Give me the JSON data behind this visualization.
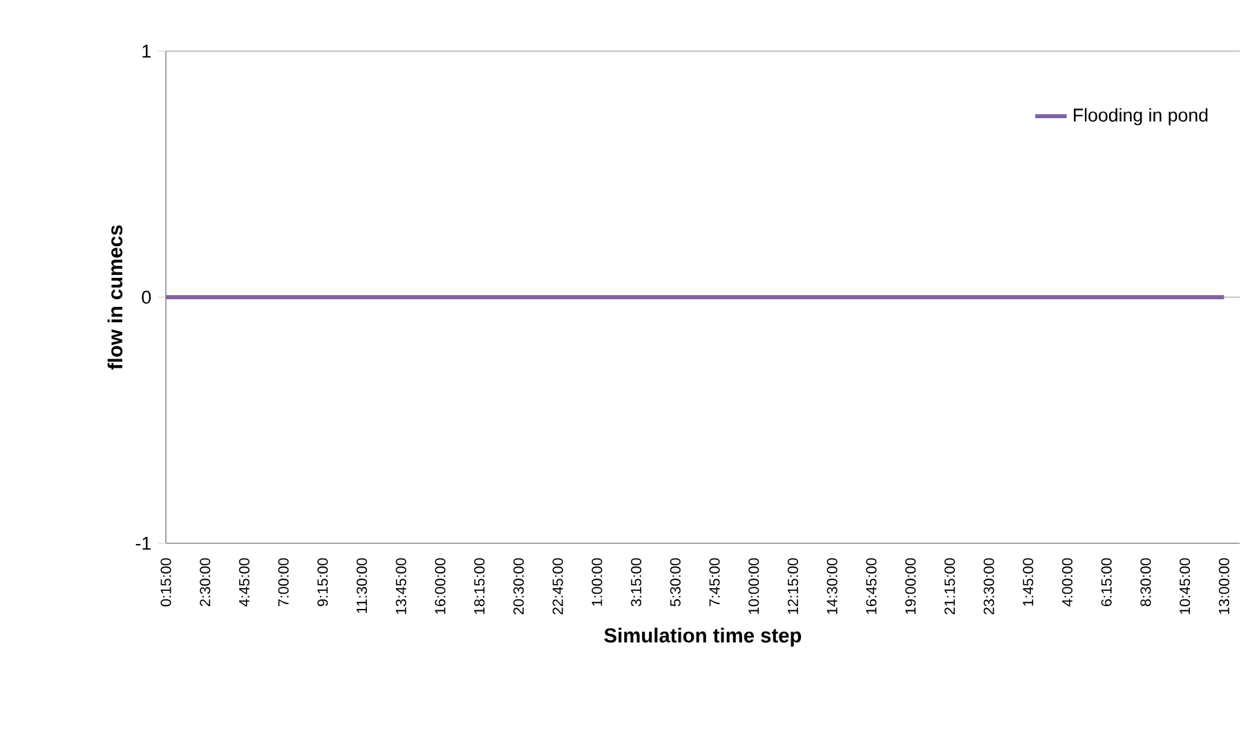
{
  "chart_data": {
    "type": "line",
    "xlabel": "Simulation time step",
    "ylabel": "flow in cumecs",
    "categories": [
      "0:15:00",
      "2:30:00",
      "4:45:00",
      "7:00:00",
      "9:15:00",
      "11:30:00",
      "13:45:00",
      "16:00:00",
      "18:15:00",
      "20:30:00",
      "22:45:00",
      "1:00:00",
      "3:15:00",
      "5:30:00",
      "7:45:00",
      "10:00:00",
      "12:15:00",
      "14:30:00",
      "16:45:00",
      "19:00:00",
      "21:15:00",
      "23:30:00",
      "1:45:00",
      "4:00:00",
      "6:15:00",
      "8:30:00",
      "10:45:00",
      "13:00:00"
    ],
    "series": [
      {
        "name": "Flooding in pond",
        "color": "#8064a2",
        "values": [
          0,
          0,
          0,
          0,
          0,
          0,
          0,
          0,
          0,
          0,
          0,
          0,
          0,
          0,
          0,
          0,
          0,
          0,
          0,
          0,
          0,
          0,
          0,
          0,
          0,
          0,
          0,
          0
        ]
      }
    ],
    "ylim": [
      -1,
      1
    ],
    "yticks": [
      -1,
      0,
      1
    ],
    "grid": "y",
    "legend": "top right",
    "marker": "none",
    "line_style": "solid"
  }
}
